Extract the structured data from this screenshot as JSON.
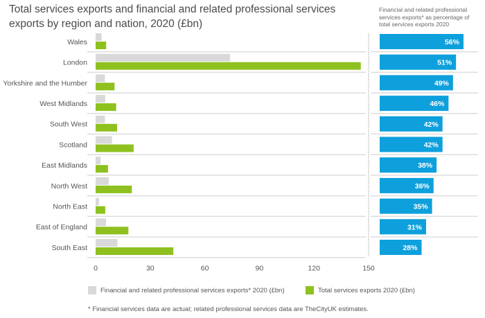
{
  "chart_data": {
    "type": "bar",
    "orientation": "horizontal",
    "title": "Total services exports and financial and related professional services exports by region and nation, 2020 (£bn)",
    "categories": [
      "Wales",
      "London",
      "Yorkshire and the Humber",
      "West Midlands",
      "South West",
      "Scotland",
      "East Midlands",
      "North West",
      "North East",
      "East of England",
      "South East"
    ],
    "series": [
      {
        "name": "Financial and related professional services exports* 2020 (£bn)",
        "color": "#d9d9da",
        "values": [
          3.3,
          73.9,
          5.1,
          5.3,
          5.1,
          9.0,
          2.7,
          7.2,
          1.9,
          5.7,
          12.0
        ]
      },
      {
        "name": "Total services exports 2020 (£bn)",
        "color": "#8ec11f",
        "values": [
          5.8,
          145.7,
          10.4,
          11.3,
          11.8,
          20.9,
          6.8,
          19.9,
          5.3,
          18.0,
          42.7
        ]
      }
    ],
    "xlim": [
      0,
      150
    ],
    "xticks": [
      0,
      30,
      60,
      90,
      120,
      150
    ],
    "legend_position": "bottom",
    "side_panel": {
      "title": "Financial and related professional services exports* as percentage of total services exports 2020",
      "color": "#0ea0dc",
      "values": [
        56,
        51,
        49,
        46,
        42,
        42,
        38,
        36,
        35,
        31,
        28
      ],
      "labels": [
        "56%",
        "51%",
        "49%",
        "46%",
        "42%",
        "42%",
        "38%",
        "36%",
        "35%",
        "31%",
        "28%"
      ]
    },
    "footnote": "* Financial services data are actual; related professional services data are TheCityUK estimates."
  }
}
